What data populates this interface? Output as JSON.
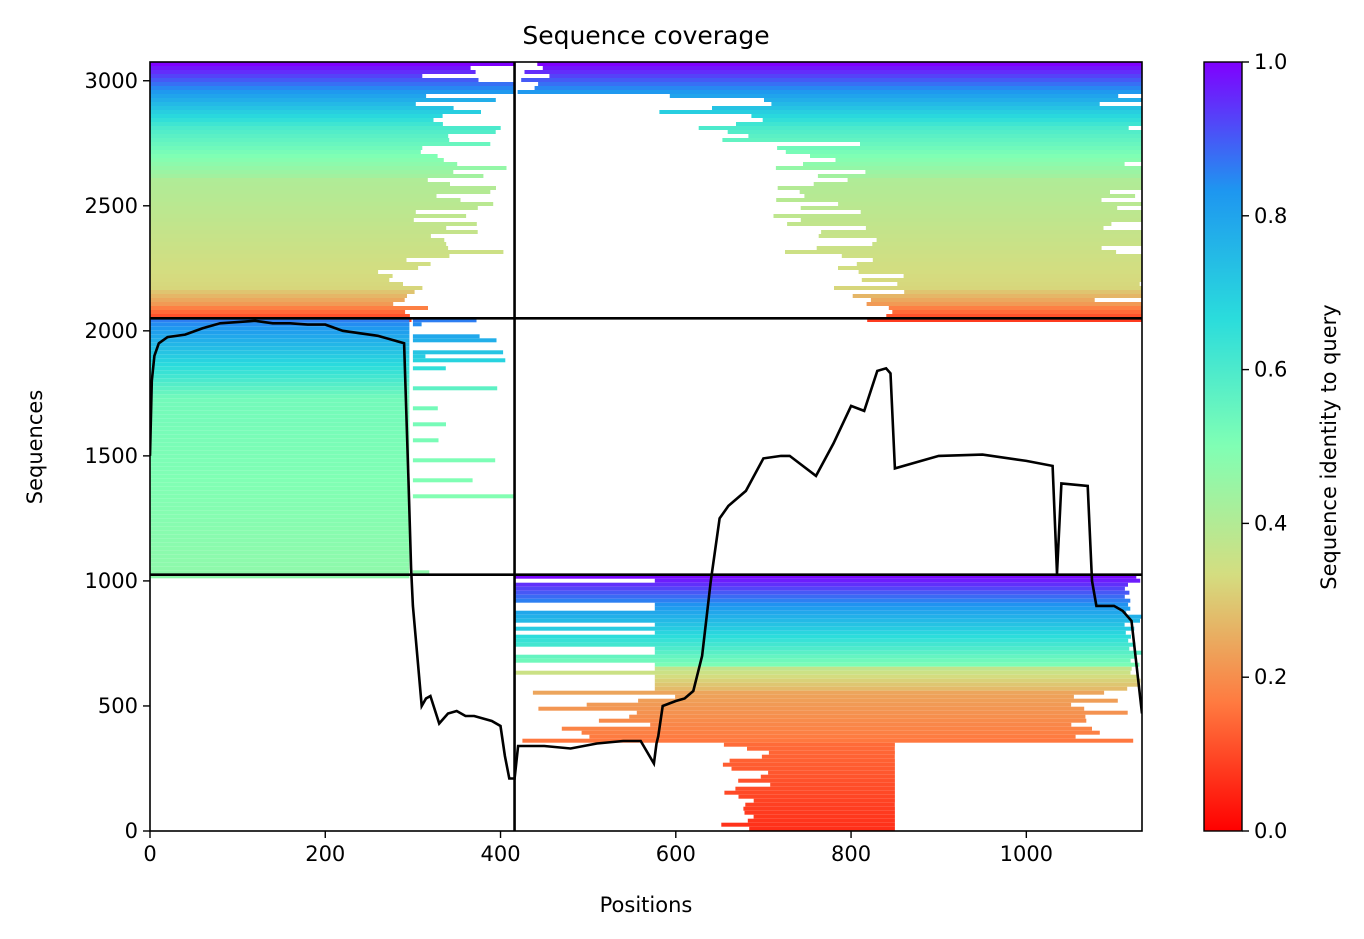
{
  "chart_data": {
    "type": "heatmap",
    "title": "Sequence coverage",
    "xlabel": "Positions",
    "ylabel": "Sequences",
    "xlim": [
      0,
      1132
    ],
    "ylim": [
      0,
      3075
    ],
    "xticks": [
      0,
      200,
      400,
      600,
      800,
      1000
    ],
    "yticks": [
      0,
      500,
      1000,
      1500,
      2000,
      2500,
      3000
    ],
    "colorbar": {
      "label": "Sequence identity to query",
      "range": [
        0,
        1
      ],
      "ticks": [
        "0.0",
        "0.2",
        "0.4",
        "0.6",
        "0.8",
        "1.0"
      ],
      "colormap": "rainbow",
      "stops": [
        "#ff0000",
        "#ff7a40",
        "#d4dd80",
        "#80ffb4",
        "#2adcdc",
        "#1e96f0",
        "#8000ff"
      ]
    },
    "separators": {
      "vertical_x": [
        416
      ],
      "horizontal_y": [
        1025,
        2050
      ]
    },
    "blocks": [
      {
        "x": [
          0,
          416
        ],
        "y": [
          2050,
          3075
        ],
        "coverage": "rows spanning 0-300, some to 416"
      },
      {
        "x": [
          416,
          1132
        ],
        "y": [
          2050,
          3075
        ],
        "coverage": "rows spanning 416-1132, many starting 650-850"
      },
      {
        "x": [
          0,
          416
        ],
        "y": [
          1025,
          2050
        ],
        "coverage": "rows spanning 0-300, some to 416"
      },
      {
        "x": [
          416,
          1132
        ],
        "y": [
          0,
          1025
        ],
        "coverage": "rows spanning 416-1132, many starting 650-700"
      }
    ],
    "coverage_line": {
      "x": [
        0,
        2,
        5,
        10,
        20,
        40,
        60,
        80,
        100,
        120,
        140,
        160,
        180,
        200,
        220,
        240,
        260,
        280,
        290,
        295,
        298,
        300,
        305,
        310,
        315,
        320,
        330,
        340,
        350,
        360,
        370,
        380,
        390,
        400,
        405,
        410,
        416,
        420,
        450,
        480,
        510,
        540,
        560,
        575,
        578,
        580,
        585,
        600,
        610,
        620,
        630,
        640,
        650,
        660,
        680,
        700,
        720,
        730,
        760,
        780,
        800,
        815,
        830,
        840,
        845,
        850,
        880,
        900,
        950,
        1000,
        1030,
        1035,
        1040,
        1070,
        1075,
        1080,
        1100,
        1110,
        1120,
        1132
      ],
      "y": [
        1500,
        1800,
        1900,
        1950,
        1975,
        1985,
        2010,
        2030,
        2035,
        2040,
        2030,
        2030,
        2025,
        2025,
        2000,
        1990,
        1980,
        1960,
        1950,
        1400,
        1050,
        900,
        700,
        500,
        530,
        540,
        430,
        470,
        480,
        460,
        460,
        450,
        440,
        420,
        300,
        210,
        210,
        340,
        340,
        330,
        350,
        360,
        360,
        270,
        350,
        380,
        500,
        520,
        530,
        560,
        700,
        1000,
        1250,
        1300,
        1360,
        1490,
        1500,
        1500,
        1420,
        1550,
        1700,
        1680,
        1840,
        1850,
        1830,
        1450,
        1480,
        1500,
        1505,
        1480,
        1460,
        1030,
        1390,
        1380,
        1000,
        900,
        900,
        880,
        840,
        470
      ]
    }
  }
}
